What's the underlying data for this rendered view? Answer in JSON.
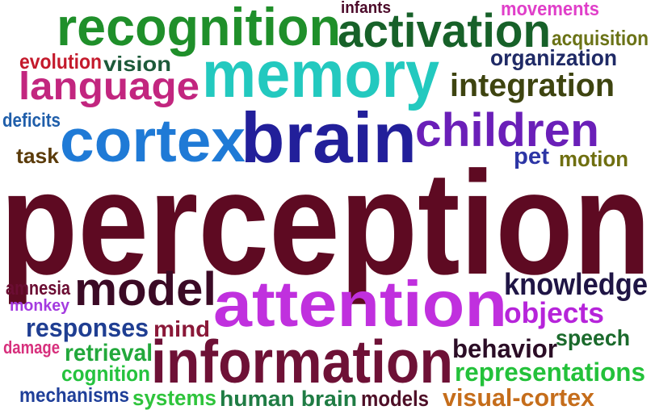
{
  "words": [
    {
      "text": "perception",
      "color": "#5e0a22"
    },
    {
      "text": "brain",
      "color": "#221f9a"
    },
    {
      "text": "memory",
      "color": "#23c9bf"
    },
    {
      "text": "cortex",
      "color": "#1f7ad6"
    },
    {
      "text": "recognition",
      "color": "#1f8f2a"
    },
    {
      "text": "attention",
      "color": "#c030de"
    },
    {
      "text": "information",
      "color": "#6e1136"
    },
    {
      "text": "activation",
      "color": "#176129"
    },
    {
      "text": "children",
      "color": "#6a1fb8"
    },
    {
      "text": "model",
      "color": "#3b0a25"
    },
    {
      "text": "language",
      "color": "#c2267f"
    },
    {
      "text": "integration",
      "color": "#3e4410"
    },
    {
      "text": "knowledge",
      "color": "#1f1545"
    },
    {
      "text": "objects",
      "color": "#b624da"
    },
    {
      "text": "representations",
      "color": "#23c13a"
    },
    {
      "text": "human brain",
      "color": "#1f7c44"
    },
    {
      "text": "visual-cortex",
      "color": "#c56d1b"
    },
    {
      "text": "behavior",
      "color": "#2b0d26"
    },
    {
      "text": "responses",
      "color": "#1f3e92"
    },
    {
      "text": "retrieval",
      "color": "#22a83b"
    },
    {
      "text": "cognition",
      "color": "#25c33e"
    },
    {
      "text": "systems",
      "color": "#2fc43c"
    },
    {
      "text": "mechanisms",
      "color": "#1f3f99"
    },
    {
      "text": "models",
      "color": "#4e0f27"
    },
    {
      "text": "speech",
      "color": "#1b6a2c"
    },
    {
      "text": "mind",
      "color": "#8a1838"
    },
    {
      "text": "motion",
      "color": "#6f6f10"
    },
    {
      "text": "pet",
      "color": "#2c35a5"
    },
    {
      "text": "organization",
      "color": "#1f2a66"
    },
    {
      "text": "acquisition",
      "color": "#6b7317"
    },
    {
      "text": "movements",
      "color": "#e03fc9"
    },
    {
      "text": "infants",
      "color": "#4c0a2a"
    },
    {
      "text": "vision",
      "color": "#1d5a3a"
    },
    {
      "text": "evolution",
      "color": "#c41a2c"
    },
    {
      "text": "deficits",
      "color": "#1f5eaa"
    },
    {
      "text": "task",
      "color": "#5b3b0a"
    },
    {
      "text": "amnesia",
      "color": "#6b0d33"
    },
    {
      "text": "monkey",
      "color": "#a43be0"
    },
    {
      "text": "damage",
      "color": "#d72f7c"
    }
  ]
}
